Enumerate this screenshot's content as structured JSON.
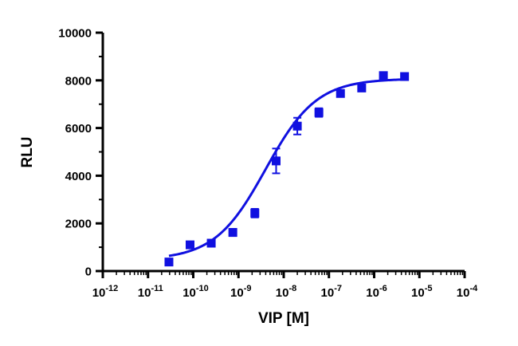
{
  "chart_data": {
    "type": "scatter",
    "xlabel": "VIP [M]",
    "ylabel": "RLU",
    "x_scale": "log",
    "xlim": [
      1e-12,
      0.0001
    ],
    "ylim": [
      0,
      10000
    ],
    "x_ticks": [
      {
        "base": "10",
        "exp": "-12"
      },
      {
        "base": "10",
        "exp": "-11"
      },
      {
        "base": "10",
        "exp": "-10"
      },
      {
        "base": "10",
        "exp": "-9"
      },
      {
        "base": "10",
        "exp": "-8"
      },
      {
        "base": "10",
        "exp": "-7"
      },
      {
        "base": "10",
        "exp": "-6"
      },
      {
        "base": "10",
        "exp": "-5"
      },
      {
        "base": "10",
        "exp": "-4"
      }
    ],
    "y_ticks": [
      "0",
      "2000",
      "4000",
      "6000",
      "8000",
      "10000"
    ],
    "color": "#1010e0",
    "grid": false,
    "legend": "none",
    "series": [
      {
        "points": [
          {
            "x": 2.9e-11,
            "y": 380,
            "err": 60
          },
          {
            "x": 8.5e-11,
            "y": 1100,
            "err": 50
          },
          {
            "x": 2.5e-10,
            "y": 1170,
            "err": 50
          },
          {
            "x": 7.5e-10,
            "y": 1620,
            "err": 150
          },
          {
            "x": 2.3e-09,
            "y": 2430,
            "err": 180
          },
          {
            "x": 6.8e-09,
            "y": 4620,
            "err": 520
          },
          {
            "x": 2e-08,
            "y": 6080,
            "err": 350
          },
          {
            "x": 6e-08,
            "y": 6650,
            "err": 180
          },
          {
            "x": 1.8e-07,
            "y": 7450,
            "err": 80
          },
          {
            "x": 5.3e-07,
            "y": 7680,
            "err": 80
          },
          {
            "x": 1.6e-06,
            "y": 8200,
            "err": 130
          },
          {
            "x": 4.7e-06,
            "y": 8160,
            "err": 50
          }
        ],
        "fit": {
          "model": "4PL",
          "bottom": 470,
          "top": 8070,
          "logEC50": -8.4,
          "hill": 0.77,
          "x_range": [
            2.9e-11,
            4.7e-06
          ]
        }
      }
    ]
  }
}
